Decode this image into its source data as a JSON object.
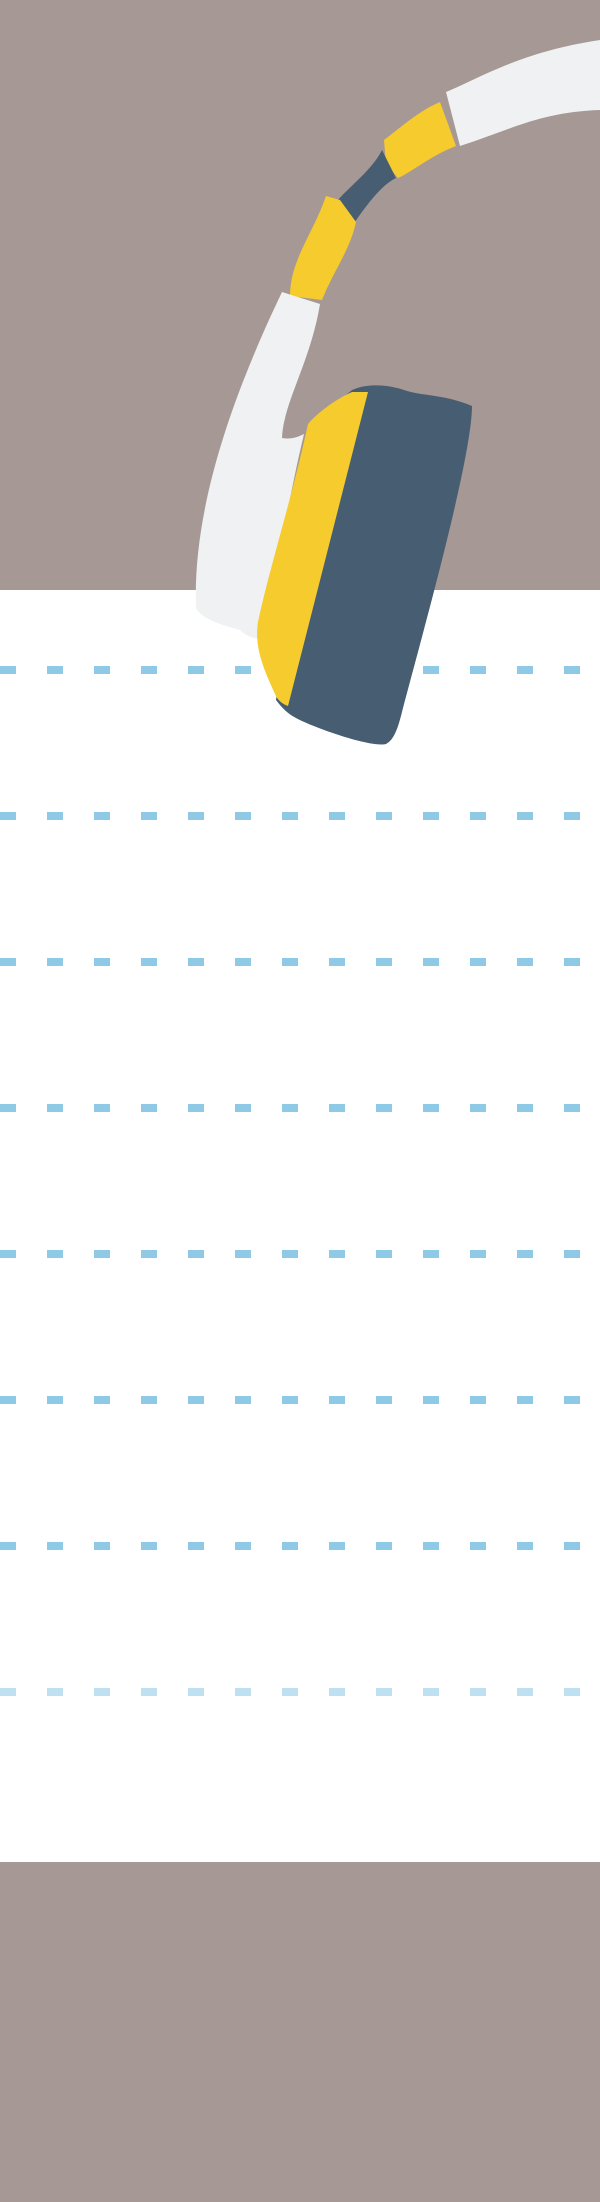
{
  "colors": {
    "background": "#a69895",
    "paper": "#ffffff",
    "rule": "#8ecae6",
    "rule_faded": "#bfe0f0",
    "headphone_body": "#475e72",
    "headphone_accent": "#f5cb2d",
    "headphone_band": "#eff1f2"
  },
  "illustration": {
    "icon": "headphones-icon"
  },
  "paper": {
    "rule_count": 8,
    "faded_rule_index": 7
  }
}
